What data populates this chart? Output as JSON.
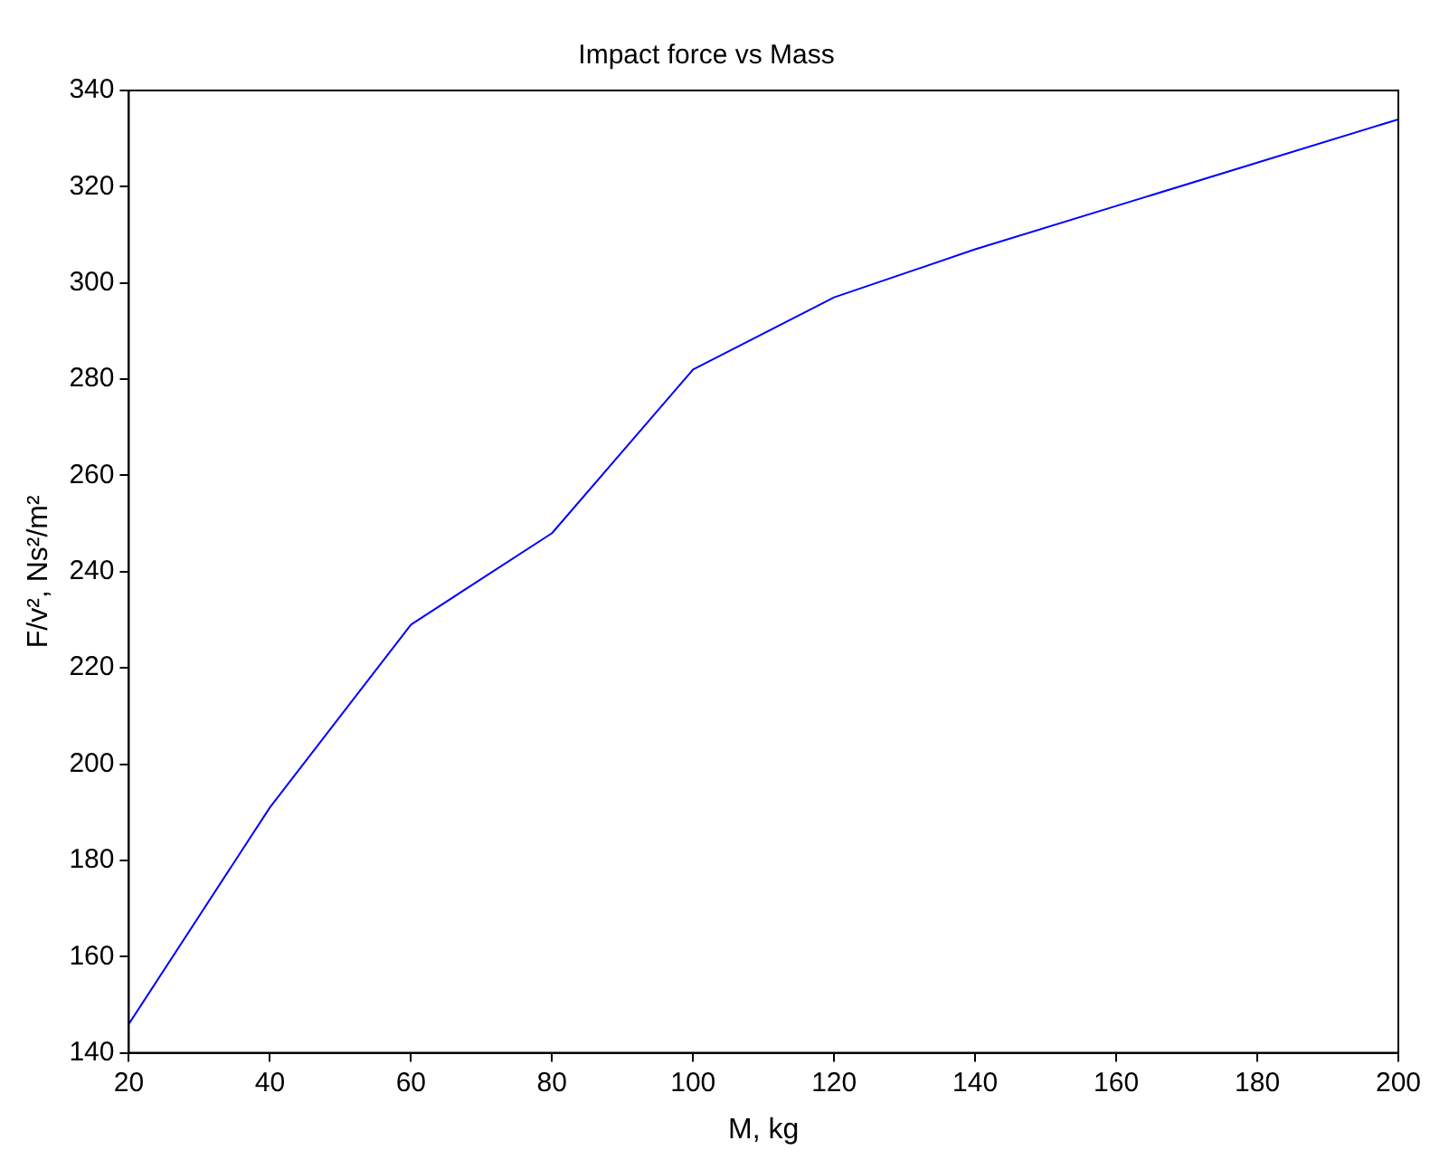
{
  "chart_data": {
    "type": "line",
    "title": "Impact force vs Mass",
    "xlabel": "M, kg",
    "ylabel": "F/v², Ns²/m²",
    "x": [
      20,
      40,
      60,
      80,
      100,
      120,
      140,
      160,
      180,
      200
    ],
    "series": [
      {
        "color": "#0000ff",
        "values": [
          146,
          191,
          229,
          248,
          282,
          297,
          307,
          316,
          325,
          334
        ]
      }
    ],
    "xlim": [
      20,
      200
    ],
    "xticks": [
      20,
      40,
      60,
      80,
      100,
      120,
      140,
      160,
      180,
      200
    ],
    "ylim": [
      140,
      340
    ],
    "yticks": [
      140,
      160,
      180,
      200,
      220,
      240,
      260,
      280,
      300,
      320,
      340
    ],
    "grid": false,
    "legend": false,
    "marker": "none",
    "line_style": "solid"
  }
}
